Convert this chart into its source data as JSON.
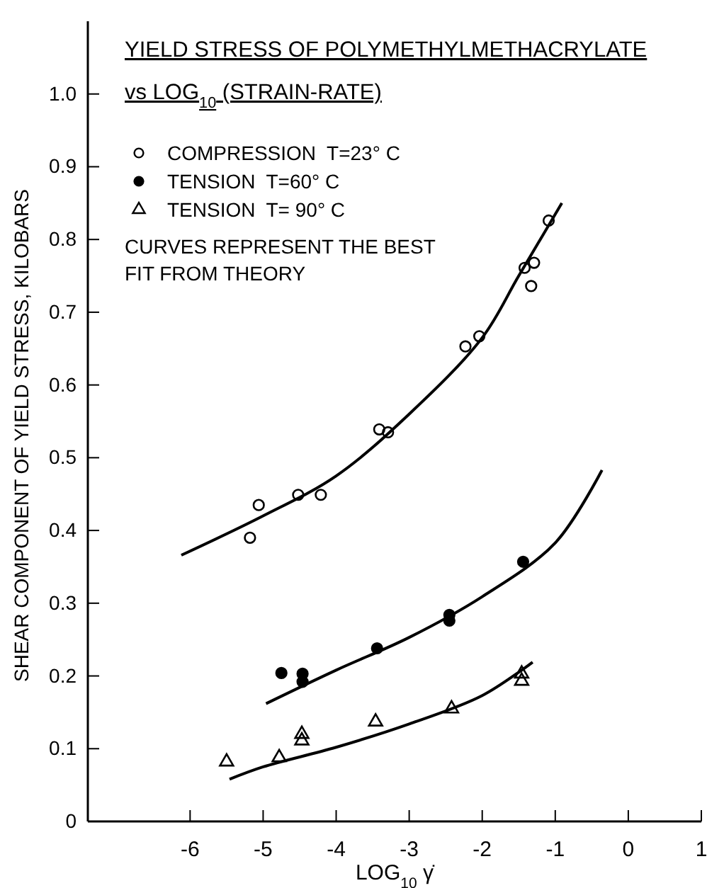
{
  "chart_data": {
    "type": "scatter",
    "title": "YIELD STRESS OF POLYMETHYLMETHACRYLATE",
    "subtitle": "vs LOG$_{10}$ (STRAIN-RATE)",
    "xlabel": "LOG$_{10}$ γ̇",
    "ylabel": "SHEAR COMPONENT OF YIELD STRESS, KILOBARS",
    "annotations": [
      "CURVES REPRESENT THE BEST FIT FROM THEORY"
    ],
    "xlim": [
      -7.4,
      1
    ],
    "xticks": [
      -6,
      -5,
      -4,
      -3,
      -2,
      -1,
      0,
      1
    ],
    "ylim": [
      0,
      1.1
    ],
    "yticks": [
      0,
      0.1,
      0.2,
      0.3,
      0.4,
      0.5,
      0.6,
      0.7,
      0.8,
      0.9,
      {
        "value": 1,
        "label": "1.0"
      }
    ],
    "grid": false,
    "legend": "top left",
    "series": [
      {
        "name": "COMPRESSION  T=23° C",
        "marker": "circle",
        "color": "#000000",
        "x": [
          -5.06,
          -5.18,
          -4.52,
          -4.21,
          -3.41,
          -3.29,
          -2.23,
          -2.04,
          -1.42,
          -1.29,
          -1.33,
          -1.09
        ],
        "values": [
          0.435,
          0.39,
          0.449,
          0.449,
          0.539,
          0.535,
          0.653,
          0.667,
          0.761,
          0.768,
          0.736,
          0.826
        ]
      },
      {
        "name": "TENSION  T=60° C",
        "marker": "filled circle",
        "color": "#000000",
        "x": [
          -4.75,
          -4.46,
          -4.46,
          -3.44,
          -2.45,
          -2.45,
          -1.44
        ],
        "values": [
          0.204,
          0.203,
          0.192,
          0.238,
          0.284,
          0.276,
          0.357
        ]
      },
      {
        "name": "TENSION  T= 90° C",
        "marker": "triangle",
        "color": "#000000",
        "x": [
          -5.5,
          -4.78,
          -4.47,
          -4.47,
          -3.46,
          -2.42,
          -1.46,
          -1.46
        ],
        "values": [
          0.082,
          0.088,
          0.12,
          0.111,
          0.137,
          0.155,
          0.203,
          0.193
        ]
      },
      {
        "type": "line",
        "color": "#000000",
        "x": [
          -6.12,
          -5,
          -4,
          -3,
          -2,
          -1.5,
          -0.91
        ],
        "values": [
          0.366,
          0.42,
          0.475,
          0.56,
          0.665,
          0.75,
          0.85
        ]
      },
      {
        "type": "line",
        "color": "#000000",
        "x": [
          -4.96,
          -4,
          -3,
          -2,
          -1,
          -0.36
        ],
        "values": [
          0.162,
          0.208,
          0.253,
          0.309,
          0.383,
          0.483
        ]
      },
      {
        "type": "line",
        "color": "#000000",
        "x": [
          -5.46,
          -5,
          -4,
          -3,
          -2,
          -1.31
        ],
        "values": [
          0.058,
          0.075,
          0.102,
          0.134,
          0.173,
          0.219
        ]
      }
    ]
  }
}
